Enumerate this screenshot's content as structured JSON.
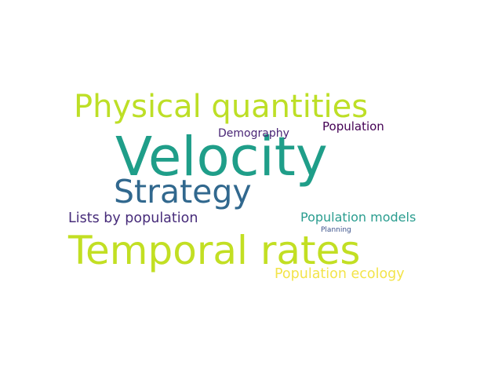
{
  "word_cloud": {
    "words": [
      {
        "id": "velocity",
        "text": "Velocity",
        "color": "#1f9e89"
      },
      {
        "id": "temporal",
        "text": "Temporal rates",
        "color": "#c2df23"
      },
      {
        "id": "physical",
        "text": "Physical quantities",
        "color": "#bddf26"
      },
      {
        "id": "strategy",
        "text": "Strategy",
        "color": "#31688e"
      },
      {
        "id": "lists",
        "text": "Lists by population",
        "color": "#472c7a"
      },
      {
        "id": "popmodels",
        "text": "Population models",
        "color": "#2a9d8f"
      },
      {
        "id": "popecology",
        "text": "Population ecology",
        "color": "#f3e44a"
      },
      {
        "id": "demography",
        "text": "Demography",
        "color": "#482475"
      },
      {
        "id": "population",
        "text": "Population",
        "color": "#440154"
      },
      {
        "id": "planning",
        "text": "Planning",
        "color": "#3b528b"
      }
    ]
  }
}
